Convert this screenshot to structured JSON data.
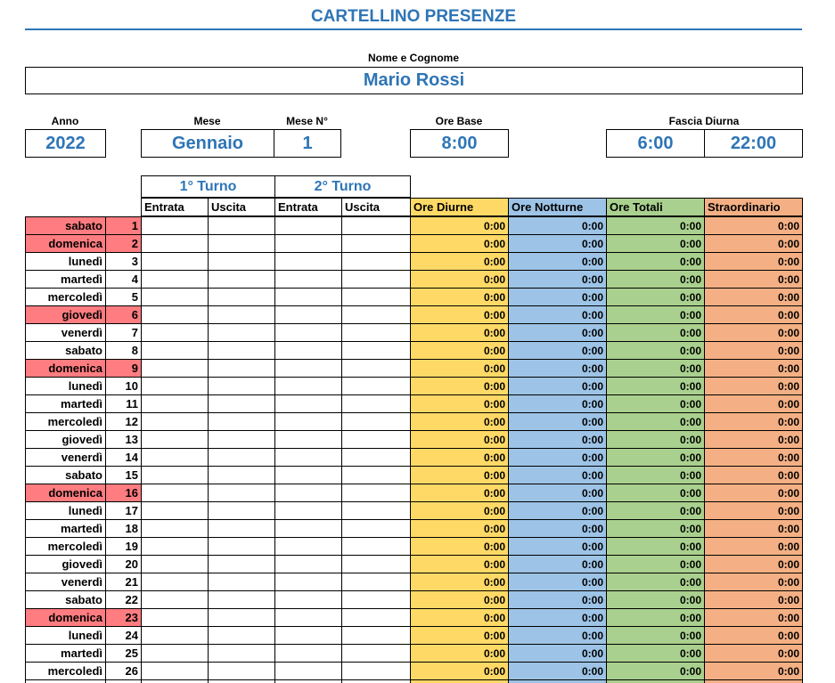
{
  "header": {
    "title": "CARTELLINO PRESENZE"
  },
  "employee": {
    "label": "Nome e Cognome",
    "name": "Mario Rossi"
  },
  "fields": {
    "year": {
      "label": "Anno",
      "value": "2022"
    },
    "month": {
      "label": "Mese",
      "value": "Gennaio"
    },
    "month_number": {
      "label": "Mese N°",
      "value": "1"
    },
    "base_hours": {
      "label": "Ore Base",
      "value": "8:00"
    },
    "day_band": {
      "label": "Fascia Diurna",
      "values": [
        "6:00",
        "22:00"
      ]
    }
  },
  "table": {
    "shifts": [
      "1° Turno",
      "2° Turno"
    ],
    "columns": [
      "Entrata",
      "Uscita",
      "Entrata",
      "Uscita",
      "Ore Diurne",
      "Ore Notturne",
      "Ore Totali",
      "Straordinario"
    ],
    "column_colors": [
      "#ffffff",
      "#ffffff",
      "#ffffff",
      "#ffffff",
      "#ffd966",
      "#9dc3e6",
      "#a9d08e",
      "#f4b084"
    ],
    "highlight_color": "#ff7c80",
    "rows": [
      {
        "day": "sabato",
        "num": 1,
        "hours": [
          "0:00",
          "0:00",
          "0:00",
          "0:00"
        ],
        "highlight": true
      },
      {
        "day": "domenica",
        "num": 2,
        "hours": [
          "0:00",
          "0:00",
          "0:00",
          "0:00"
        ],
        "highlight": true
      },
      {
        "day": "lunedì",
        "num": 3,
        "hours": [
          "0:00",
          "0:00",
          "0:00",
          "0:00"
        ]
      },
      {
        "day": "martedì",
        "num": 4,
        "hours": [
          "0:00",
          "0:00",
          "0:00",
          "0:00"
        ]
      },
      {
        "day": "mercoledì",
        "num": 5,
        "hours": [
          "0:00",
          "0:00",
          "0:00",
          "0:00"
        ]
      },
      {
        "day": "giovedì",
        "num": 6,
        "hours": [
          "0:00",
          "0:00",
          "0:00",
          "0:00"
        ],
        "highlight": true
      },
      {
        "day": "venerdì",
        "num": 7,
        "hours": [
          "0:00",
          "0:00",
          "0:00",
          "0:00"
        ]
      },
      {
        "day": "sabato",
        "num": 8,
        "hours": [
          "0:00",
          "0:00",
          "0:00",
          "0:00"
        ]
      },
      {
        "day": "domenica",
        "num": 9,
        "hours": [
          "0:00",
          "0:00",
          "0:00",
          "0:00"
        ],
        "highlight": true
      },
      {
        "day": "lunedì",
        "num": 10,
        "hours": [
          "0:00",
          "0:00",
          "0:00",
          "0:00"
        ]
      },
      {
        "day": "martedì",
        "num": 11,
        "hours": [
          "0:00",
          "0:00",
          "0:00",
          "0:00"
        ]
      },
      {
        "day": "mercoledì",
        "num": 12,
        "hours": [
          "0:00",
          "0:00",
          "0:00",
          "0:00"
        ]
      },
      {
        "day": "giovedì",
        "num": 13,
        "hours": [
          "0:00",
          "0:00",
          "0:00",
          "0:00"
        ]
      },
      {
        "day": "venerdì",
        "num": 14,
        "hours": [
          "0:00",
          "0:00",
          "0:00",
          "0:00"
        ]
      },
      {
        "day": "sabato",
        "num": 15,
        "hours": [
          "0:00",
          "0:00",
          "0:00",
          "0:00"
        ]
      },
      {
        "day": "domenica",
        "num": 16,
        "hours": [
          "0:00",
          "0:00",
          "0:00",
          "0:00"
        ],
        "highlight": true
      },
      {
        "day": "lunedì",
        "num": 17,
        "hours": [
          "0:00",
          "0:00",
          "0:00",
          "0:00"
        ]
      },
      {
        "day": "martedì",
        "num": 18,
        "hours": [
          "0:00",
          "0:00",
          "0:00",
          "0:00"
        ]
      },
      {
        "day": "mercoledì",
        "num": 19,
        "hours": [
          "0:00",
          "0:00",
          "0:00",
          "0:00"
        ]
      },
      {
        "day": "giovedì",
        "num": 20,
        "hours": [
          "0:00",
          "0:00",
          "0:00",
          "0:00"
        ]
      },
      {
        "day": "venerdì",
        "num": 21,
        "hours": [
          "0:00",
          "0:00",
          "0:00",
          "0:00"
        ]
      },
      {
        "day": "sabato",
        "num": 22,
        "hours": [
          "0:00",
          "0:00",
          "0:00",
          "0:00"
        ]
      },
      {
        "day": "domenica",
        "num": 23,
        "hours": [
          "0:00",
          "0:00",
          "0:00",
          "0:00"
        ],
        "highlight": true
      },
      {
        "day": "lunedì",
        "num": 24,
        "hours": [
          "0:00",
          "0:00",
          "0:00",
          "0:00"
        ]
      },
      {
        "day": "martedì",
        "num": 25,
        "hours": [
          "0:00",
          "0:00",
          "0:00",
          "0:00"
        ]
      },
      {
        "day": "mercoledì",
        "num": 26,
        "hours": [
          "0:00",
          "0:00",
          "0:00",
          "0:00"
        ]
      }
    ]
  }
}
